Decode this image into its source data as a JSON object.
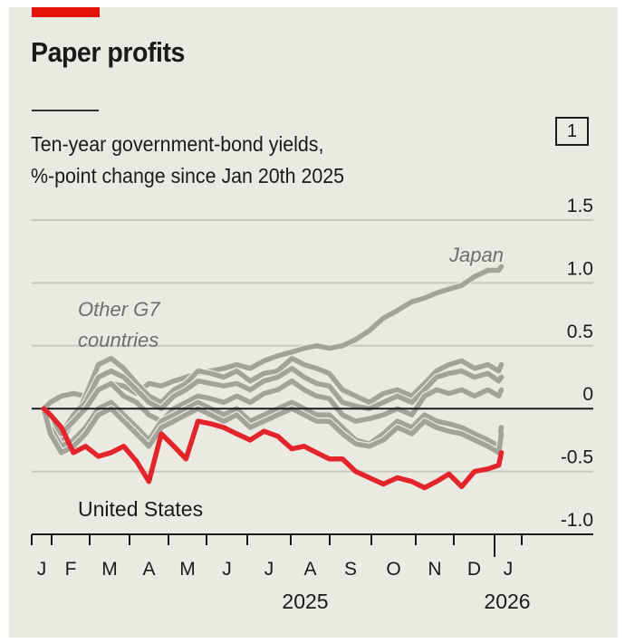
{
  "header": {
    "title": "Paper profits",
    "subtitle_line1": "Ten-year government-bond yields,",
    "subtitle_line2": "%-point change since Jan 20th 2025",
    "chart_number": "1"
  },
  "colors": {
    "background": "#ebeae2",
    "accent_red": "#e3120b",
    "us_line": "#e3242b",
    "other_lines": "#a3a39c",
    "gridline": "#c9c8c0",
    "text": "#1a1a1a"
  },
  "chart_data": {
    "type": "line",
    "title": "Paper profits",
    "subtitle": "Ten-year government-bond yields, %-point change since Jan 20th 2025",
    "xlabel": "",
    "ylabel": "",
    "ylim": [
      -1.0,
      1.5
    ],
    "yticks": [
      1.5,
      1.0,
      0.5,
      0,
      -0.5,
      -1.0
    ],
    "ytick_labels": [
      "1.5",
      "1.0",
      "0.5",
      "0",
      "-0.5",
      "-1.0"
    ],
    "y_axis_side": "right",
    "grid": true,
    "x_start": "2025-01-20",
    "x_end": "2026-01-23",
    "month_ticks": [
      "2025-01-01",
      "2025-02-01",
      "2025-03-01",
      "2025-04-01",
      "2025-05-01",
      "2025-06-01",
      "2025-07-01",
      "2025-08-01",
      "2025-09-01",
      "2025-10-01",
      "2025-11-01",
      "2025-12-01",
      "2026-01-01",
      "2026-02-01"
    ],
    "month_labels": [
      "J",
      "F",
      "M",
      "A",
      "M",
      "J",
      "J",
      "A",
      "S",
      "O",
      "N",
      "D",
      "J"
    ],
    "year_labels": [
      {
        "label": "2025",
        "month_index": 6
      },
      {
        "label": "2026",
        "month_index": 12
      }
    ],
    "annotations": [
      {
        "text": "Japan",
        "series": "Japan"
      },
      {
        "text_line1": "Other G7",
        "text_line2": "countries",
        "series_group": "other"
      },
      {
        "text": "United States",
        "series": "United States"
      }
    ],
    "x_months": [
      0.0,
      0.33,
      0.67,
      1.0,
      1.33,
      1.67,
      2.0,
      2.33,
      2.67,
      3.0,
      3.33,
      3.67,
      4.0,
      4.33,
      4.67,
      5.0,
      5.33,
      5.67,
      6.0,
      6.33,
      6.67,
      7.0,
      7.33,
      7.67,
      8.0,
      8.33,
      8.67,
      9.0,
      9.33,
      9.67,
      10.0,
      10.33,
      10.67,
      11.0,
      11.33,
      11.67,
      12.0,
      12.1
    ],
    "series": [
      {
        "name": "United States",
        "highlight": true,
        "values": [
          0.0,
          -0.05,
          -0.15,
          -0.35,
          -0.3,
          -0.38,
          -0.35,
          -0.3,
          -0.42,
          -0.58,
          -0.2,
          -0.3,
          -0.4,
          -0.1,
          -0.12,
          -0.15,
          -0.2,
          -0.25,
          -0.18,
          -0.22,
          -0.32,
          -0.3,
          -0.35,
          -0.4,
          -0.4,
          -0.5,
          -0.55,
          -0.6,
          -0.55,
          -0.58,
          -0.63,
          -0.58,
          -0.52,
          -0.62,
          -0.5,
          -0.48,
          -0.45,
          -0.35
        ]
      },
      {
        "name": "Japan",
        "highlight": false,
        "values": [
          0.0,
          0.05,
          0.1,
          0.12,
          0.1,
          0.15,
          0.2,
          0.18,
          0.12,
          0.2,
          0.18,
          0.22,
          0.25,
          0.28,
          0.3,
          0.32,
          0.35,
          0.32,
          0.38,
          0.42,
          0.45,
          0.48,
          0.5,
          0.48,
          0.5,
          0.55,
          0.62,
          0.72,
          0.78,
          0.85,
          0.88,
          0.92,
          0.95,
          0.98,
          1.05,
          1.1,
          1.1,
          1.13
        ]
      },
      {
        "name": "Other G7 A",
        "highlight": false,
        "values": [
          0.0,
          -0.1,
          -0.25,
          -0.1,
          0.1,
          0.35,
          0.4,
          0.32,
          0.2,
          0.1,
          0.05,
          0.15,
          0.2,
          0.3,
          0.28,
          0.25,
          0.3,
          0.22,
          0.28,
          0.3,
          0.4,
          0.35,
          0.32,
          0.28,
          0.15,
          0.1,
          0.05,
          0.12,
          0.15,
          0.1,
          0.2,
          0.3,
          0.35,
          0.38,
          0.32,
          0.35,
          0.3,
          0.35
        ]
      },
      {
        "name": "Other G7 B",
        "highlight": false,
        "values": [
          0.0,
          -0.1,
          -0.2,
          -0.05,
          0.05,
          0.25,
          0.3,
          0.25,
          0.15,
          0.05,
          0.0,
          0.1,
          0.15,
          0.22,
          0.2,
          0.18,
          0.2,
          0.15,
          0.22,
          0.25,
          0.32,
          0.25,
          0.2,
          0.18,
          0.05,
          0.02,
          0.0,
          0.05,
          0.1,
          0.05,
          0.15,
          0.25,
          0.28,
          0.3,
          0.25,
          0.28,
          0.22,
          0.25
        ]
      },
      {
        "name": "Other G7 C",
        "highlight": false,
        "values": [
          0.0,
          -0.1,
          -0.2,
          -0.1,
          0.0,
          0.15,
          0.2,
          0.1,
          0.05,
          -0.05,
          -0.1,
          0.0,
          0.05,
          0.1,
          0.08,
          0.05,
          0.1,
          0.05,
          0.12,
          0.15,
          0.22,
          0.15,
          0.1,
          0.08,
          -0.05,
          -0.1,
          -0.08,
          -0.05,
          0.0,
          -0.05,
          0.1,
          0.15,
          0.12,
          0.15,
          0.1,
          0.15,
          0.1,
          0.15
        ]
      },
      {
        "name": "Other G7 D",
        "highlight": false,
        "values": [
          0.0,
          -0.15,
          -0.3,
          -0.25,
          -0.15,
          0.0,
          0.05,
          -0.05,
          -0.15,
          -0.25,
          -0.1,
          -0.05,
          0.0,
          0.05,
          0.0,
          -0.05,
          0.0,
          -0.1,
          -0.05,
          0.0,
          0.05,
          0.0,
          -0.05,
          -0.05,
          -0.15,
          -0.25,
          -0.28,
          -0.2,
          -0.1,
          -0.15,
          -0.05,
          -0.1,
          -0.12,
          -0.15,
          -0.2,
          -0.25,
          -0.3,
          -0.15
        ]
      },
      {
        "name": "Other G7 E",
        "highlight": false,
        "values": [
          0.0,
          -0.2,
          -0.35,
          -0.3,
          -0.2,
          -0.05,
          0.0,
          -0.1,
          -0.2,
          -0.3,
          -0.15,
          -0.1,
          -0.05,
          0.0,
          -0.05,
          -0.1,
          -0.05,
          -0.15,
          -0.1,
          -0.05,
          0.0,
          -0.05,
          -0.1,
          -0.1,
          -0.2,
          -0.28,
          -0.3,
          -0.25,
          -0.15,
          -0.2,
          -0.1,
          -0.15,
          -0.18,
          -0.2,
          -0.25,
          -0.3,
          -0.35,
          -0.2
        ]
      }
    ]
  }
}
